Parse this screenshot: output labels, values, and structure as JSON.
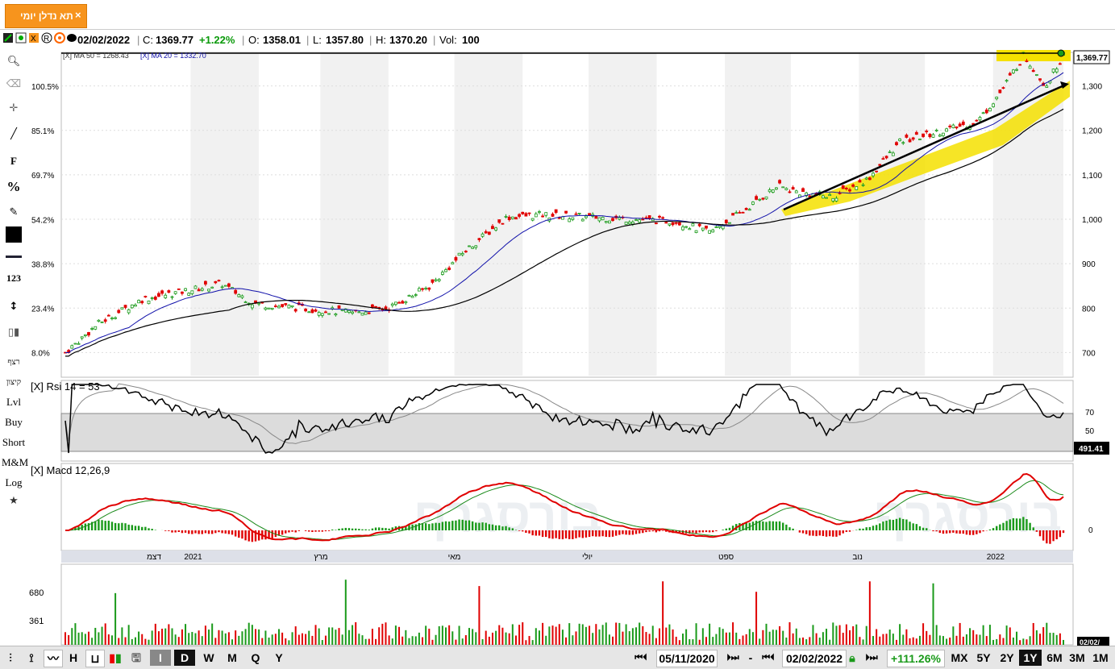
{
  "tab": {
    "title": "תא נדלן יומי",
    "close": "×"
  },
  "info": {
    "date": "02/02/2022",
    "close_label": "C:",
    "close": "1369.77",
    "change": "+1.22%",
    "open_label": "O:",
    "open": "1358.01",
    "low_label": "L:",
    "low": "1357.80",
    "high_label": "H:",
    "high": "1370.20",
    "vol_label": "Vol:",
    "vol": "100"
  },
  "tools": {
    "f": "F",
    "pct": "%",
    "n123": "123",
    "ret": "רצף",
    "kitzun": "קיצון",
    "lvl": "Lvl",
    "buy": "Buy",
    "short": "Short",
    "mm": "M&M",
    "log": "Log"
  },
  "indicators": {
    "ma50": "[X] MA 50 = 1268.43",
    "ma20": "[X] MA 20 = 1332.70",
    "rsi": "[X] Rsi 14 = 53",
    "macd": "[X] Macd 12,26,9"
  },
  "price_axis": {
    "right": [
      "1,300",
      "1,200",
      "1,100",
      "1,000",
      "900",
      "800",
      "700"
    ],
    "last": "1,369.77"
  },
  "pct_axis": [
    "100.5%",
    "85.1%",
    "69.7%",
    "54.2%",
    "38.8%",
    "23.4%",
    "8.0%"
  ],
  "rsi_axis": {
    "levels": [
      "70",
      "50"
    ],
    "box": "491.41"
  },
  "macd_axis": {
    "zero": "0"
  },
  "time_axis": [
    "דצמ",
    "2021",
    "מרץ",
    "מאי",
    "יולי",
    "ספט",
    "נוב",
    "2022"
  ],
  "volume_axis": {
    "labels": [
      "680",
      "361"
    ],
    "box": "02/02/"
  },
  "watermark": "בורסגרף",
  "bottom": {
    "b_I": "I",
    "b_D": "D",
    "b_W": "W",
    "b_M": "M",
    "b_Q": "Q",
    "b_Y": "Y",
    "h_label": "H",
    "start_date": "05/11/2020",
    "sep": "-",
    "end_date": "02/02/2022",
    "change": "+111.26%",
    "nav_prev": "⏮⏴",
    "nav_next": "⏵⏭",
    "ranges": [
      "MX",
      "5Y",
      "2Y",
      "1Y",
      "6M",
      "3M",
      "1M"
    ],
    "selected_range": "1Y"
  },
  "colors": {
    "up": "#1a9a1a",
    "down": "#e00000",
    "ma20": "#1111aa",
    "ma50": "#000000",
    "highlight": "#f5e000",
    "tab": "#f7941d"
  },
  "chart_data": {
    "type": "candlestick",
    "title": "תא נדלן יומי",
    "x_range": [
      "2020-11-05",
      "2022-02-02"
    ],
    "ylim": [
      650,
      1370
    ],
    "last": {
      "date": "02/02/2022",
      "open": 1358.01,
      "high": 1370.2,
      "low": 1357.8,
      "close": 1369.77,
      "change_pct": 1.22,
      "volume": 100
    },
    "close_path": [
      [
        "2020-11-05",
        700
      ],
      [
        "2020-11-20",
        765
      ],
      [
        "2020-12-10",
        820
      ],
      [
        "2020-12-31",
        840
      ],
      [
        "2021-01-15",
        855
      ],
      [
        "2021-01-30",
        810
      ],
      [
        "2021-02-20",
        800
      ],
      [
        "2021-03-15",
        790
      ],
      [
        "2021-04-01",
        800
      ],
      [
        "2021-04-20",
        850
      ],
      [
        "2021-05-05",
        925
      ],
      [
        "2021-05-25",
        1005
      ],
      [
        "2021-06-10",
        1010
      ],
      [
        "2021-07-01",
        1005
      ],
      [
        "2021-07-20",
        1000
      ],
      [
        "2021-08-10",
        995
      ],
      [
        "2021-08-25",
        970
      ],
      [
        "2021-09-10",
        1020
      ],
      [
        "2021-09-25",
        1075
      ],
      [
        "2021-10-05",
        1060
      ],
      [
        "2021-10-20",
        1050
      ],
      [
        "2021-11-05",
        1090
      ],
      [
        "2021-11-20",
        1175
      ],
      [
        "2021-12-10",
        1200
      ],
      [
        "2021-12-25",
        1220
      ],
      [
        "2022-01-05",
        1290
      ],
      [
        "2022-01-15",
        1370
      ],
      [
        "2022-01-25",
        1300
      ],
      [
        "2022-02-02",
        1370
      ]
    ],
    "ma20_last": 1332.7,
    "ma50_last": 1268.43,
    "rsi": {
      "period": 14,
      "last": 53,
      "levels": [
        70,
        50
      ]
    },
    "macd": {
      "params": [
        12,
        26,
        9
      ]
    },
    "volume_labels": [
      680,
      361
    ],
    "period_change_pct": 111.26
  }
}
